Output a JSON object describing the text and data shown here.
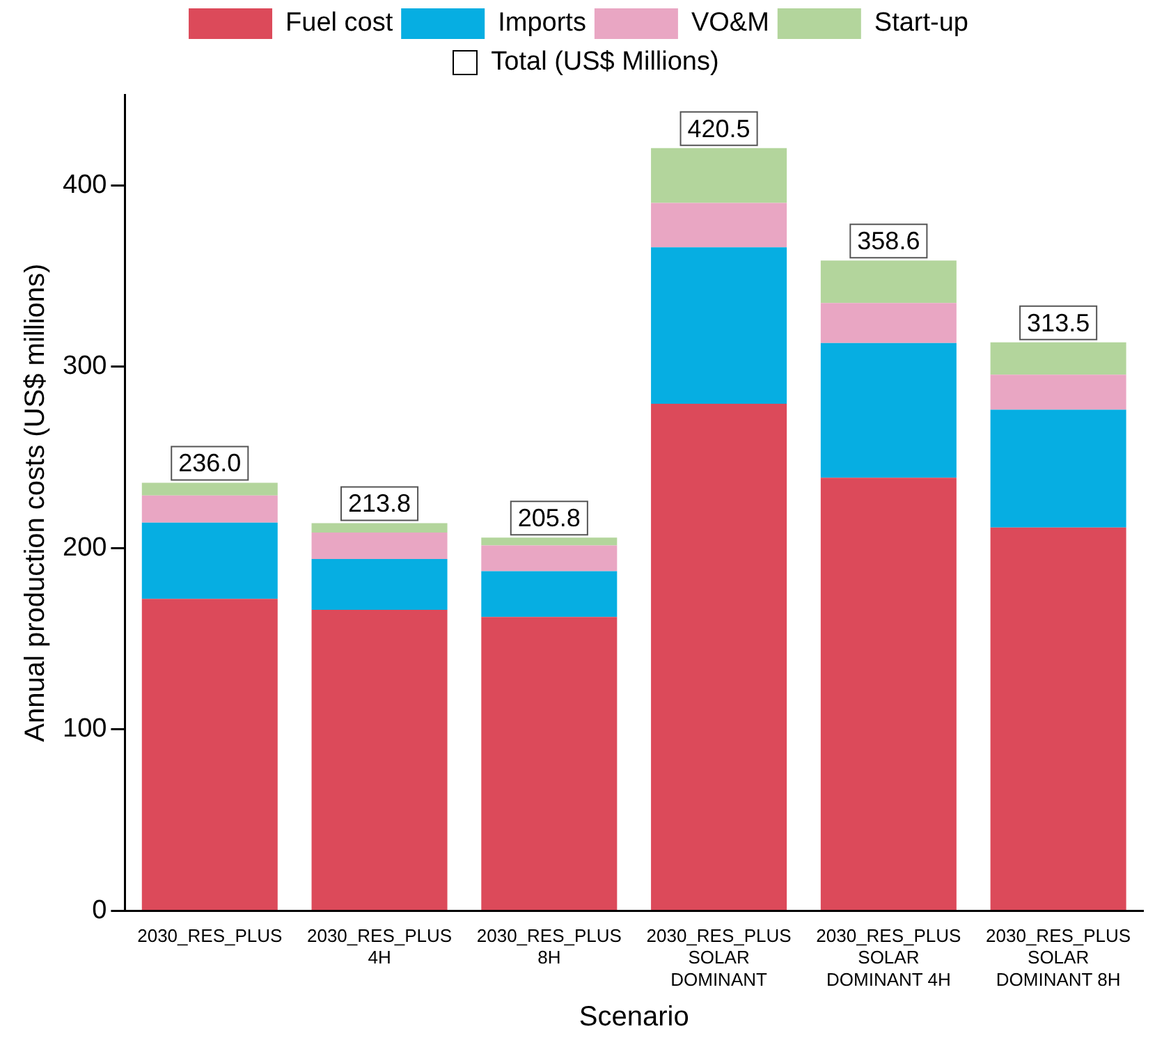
{
  "chart_data": {
    "type": "bar",
    "stacked": true,
    "xlabel": "Scenario",
    "ylabel": "Annual production costs (US$ millions)",
    "categories": [
      "2030_RES_PLUS",
      "2030_RES_PLUS 4H",
      "2030_RES_PLUS 8H",
      "2030_RES_PLUS SOLAR DOMINANT",
      "2030_RES_PLUS SOLAR DOMINANT 4H",
      "2030_RES_PLUS SOLAR DOMINANT 8H"
    ],
    "series": [
      {
        "name": "Fuel cost",
        "color": "#dc4a5a",
        "values": [
          172,
          166,
          162,
          279.6,
          238.8,
          211.4
        ]
      },
      {
        "name": "Imports",
        "color": "#06aee2",
        "values": [
          42,
          28,
          25.3,
          86.2,
          74.3,
          64.9
        ]
      },
      {
        "name": "VO&M",
        "color": "#e9a6c3",
        "values": [
          15,
          14.6,
          14.2,
          24.5,
          22,
          19.3
        ]
      },
      {
        "name": "Start-up",
        "color": "#b3d59c",
        "values": [
          7,
          5.2,
          4.3,
          30.2,
          23.5,
          17.9
        ]
      }
    ],
    "totals": [
      "236.0",
      "213.8",
      "205.8",
      "420.5",
      "358.6",
      "313.5"
    ],
    "annotations": [
      "Total (US$ Millions)"
    ],
    "ylim": [
      0,
      450
    ],
    "yticks": [
      0,
      100,
      200,
      300,
      400
    ],
    "grid": false,
    "legend": "top"
  }
}
